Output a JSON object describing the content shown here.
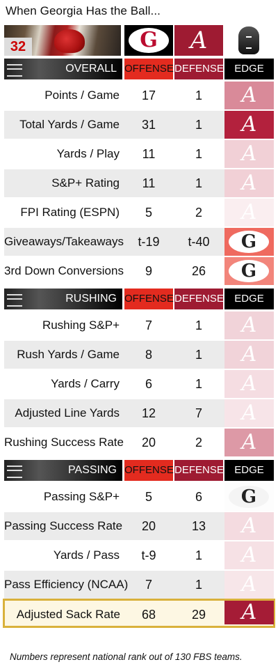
{
  "title": "When Georgia Has the Ball...",
  "banner": {
    "photo_jersey": "32",
    "team_a_logo": "G",
    "team_b_logo": "A",
    "colors": {
      "georgia": "#ba0c2f",
      "alabama": "#9e1b32",
      "offense_header": "#e32b1f"
    }
  },
  "sections": [
    {
      "name": "OVERALL",
      "offense_label": "OFFENSE",
      "defense_label": "DEFENSE",
      "edge_label": "EDGE",
      "rows": [
        {
          "label": "Points / Game",
          "offense": "17",
          "defense": "1",
          "edge": "A",
          "edge_color": "#d98a99"
        },
        {
          "label": "Total Yards / Game",
          "offense": "31",
          "defense": "1",
          "edge": "A",
          "edge_color": "#b3213d"
        },
        {
          "label": "Yards / Play",
          "offense": "11",
          "defense": "1",
          "edge": "A",
          "edge_color": "#f1d0d6"
        },
        {
          "label": "S&P+ Rating",
          "offense": "11",
          "defense": "1",
          "edge": "A",
          "edge_color": "#f1d0d6"
        },
        {
          "label": "FPI Rating (ESPN)",
          "offense": "5",
          "defense": "2",
          "edge": "A",
          "edge_color": "#faeef0"
        },
        {
          "label": "Giveaways/Takeaways",
          "offense": "t-19",
          "defense": "t-40",
          "edge": "G",
          "edge_color": "#ef6a5f"
        },
        {
          "label": "3rd Down Conversions",
          "offense": "9",
          "defense": "26",
          "edge": "G",
          "edge_color": "#f2857b"
        }
      ]
    },
    {
      "name": "RUSHING",
      "offense_label": "OFFENSE",
      "defense_label": "DEFENSE",
      "edge_label": "EDGE",
      "rows": [
        {
          "label": "Rushing S&P+",
          "offense": "7",
          "defense": "1",
          "edge": "A",
          "edge_color": "#f1d3d9"
        },
        {
          "label": "Rush Yards / Game",
          "offense": "8",
          "defense": "1",
          "edge": "A",
          "edge_color": "#f1d3d9"
        },
        {
          "label": "Yards / Carry",
          "offense": "6",
          "defense": "1",
          "edge": "A",
          "edge_color": "#f5dde2"
        },
        {
          "label": "Adjusted Line Yards",
          "offense": "12",
          "defense": "7",
          "edge": "A",
          "edge_color": "#f7e4e8"
        },
        {
          "label": "Rushing Success Rate",
          "offense": "20",
          "defense": "2",
          "edge": "A",
          "edge_color": "#dd99a6"
        }
      ]
    },
    {
      "name": "PASSING",
      "offense_label": "OFFENSE",
      "defense_label": "DEFENSE",
      "edge_label": "EDGE",
      "rows": [
        {
          "label": "Passing S&P+",
          "offense": "5",
          "defense": "6",
          "edge": "G",
          "edge_color": "#fdfdfd"
        },
        {
          "label": "Passing Success Rate",
          "offense": "20",
          "defense": "13",
          "edge": "A",
          "edge_color": "#f4dbe0"
        },
        {
          "label": "Yards / Pass",
          "offense": "t-9",
          "defense": "1",
          "edge": "A",
          "edge_color": "#f6e1e5"
        },
        {
          "label": "Pass Efficiency (NCAA)",
          "offense": "7",
          "defense": "1",
          "edge": "A",
          "edge_color": "#f7e6e9"
        },
        {
          "label": "Adjusted Sack Rate",
          "offense": "68",
          "defense": "29",
          "edge": "A",
          "edge_color": "#a51c36"
        }
      ]
    }
  ],
  "footnote": "Numbers represent national rank out of 130 FBS teams."
}
